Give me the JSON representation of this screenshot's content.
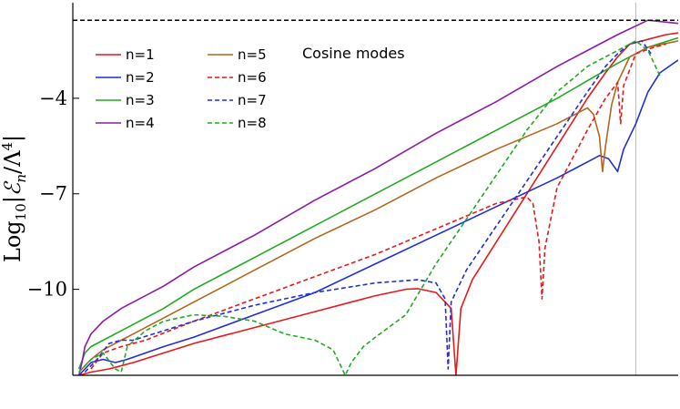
{
  "chart_data": {
    "type": "line",
    "title": "",
    "ylabel": "Log₁₀|ℰₙ/Λ⁴|",
    "ylabel_parts": {
      "prefix": "Log",
      "sub": "10",
      "body": "|ℰ",
      "body_sub": "n",
      "tail": "/Λ",
      "sup": "4",
      "close": "|"
    },
    "xlabel": "",
    "xlim": [
      0,
      1
    ],
    "ylim": [
      -12.7,
      -1.0
    ],
    "y_ticks": [
      -4,
      -7,
      -10
    ],
    "y_tick_labels": [
      "−4",
      "−7",
      "−10"
    ],
    "x_ticks_shown": false,
    "grid": false,
    "legend_placement": "top-left",
    "annotation": "Cosine modes",
    "reference_hline": {
      "y": -1.55,
      "style": "dashed",
      "color": "#000000"
    },
    "reference_vline": {
      "x": 0.93,
      "color": "#bbbbbb"
    },
    "series": [
      {
        "name": "n=1",
        "color": "#e41a1c",
        "dash": "solid",
        "points": [
          [
            0.01,
            -12.7
          ],
          [
            0.03,
            -12.6
          ],
          [
            0.06,
            -12.5
          ],
          [
            0.1,
            -12.3
          ],
          [
            0.2,
            -11.7
          ],
          [
            0.3,
            -11.2
          ],
          [
            0.4,
            -10.7
          ],
          [
            0.5,
            -10.2
          ],
          [
            0.55,
            -10.0
          ],
          [
            0.57,
            -9.98
          ],
          [
            0.6,
            -10.1
          ],
          [
            0.625,
            -10.6
          ],
          [
            0.633,
            -12.7
          ],
          [
            0.641,
            -10.6
          ],
          [
            0.66,
            -9.7
          ],
          [
            0.7,
            -8.5
          ],
          [
            0.75,
            -7.0
          ],
          [
            0.8,
            -5.5
          ],
          [
            0.85,
            -4.0
          ],
          [
            0.88,
            -3.2
          ],
          [
            0.9,
            -2.7
          ],
          [
            0.92,
            -2.3
          ],
          [
            0.95,
            -2.15
          ],
          [
            0.98,
            -2.0
          ],
          [
            1.0,
            -1.95
          ]
        ]
      },
      {
        "name": "n=2",
        "color": "#1f2fd6",
        "dash": "solid",
        "points": [
          [
            0.01,
            -12.7
          ],
          [
            0.03,
            -12.3
          ],
          [
            0.05,
            -12.2
          ],
          [
            0.07,
            -12.3
          ],
          [
            0.09,
            -12.2
          ],
          [
            0.15,
            -11.8
          ],
          [
            0.2,
            -11.5
          ],
          [
            0.3,
            -10.8
          ],
          [
            0.4,
            -10.1
          ],
          [
            0.5,
            -9.2
          ],
          [
            0.6,
            -8.3
          ],
          [
            0.7,
            -7.4
          ],
          [
            0.8,
            -6.5
          ],
          [
            0.85,
            -6.0
          ],
          [
            0.87,
            -5.8
          ],
          [
            0.885,
            -5.9
          ],
          [
            0.9,
            -6.3
          ],
          [
            0.91,
            -5.6
          ],
          [
            0.93,
            -4.8
          ],
          [
            0.95,
            -3.8
          ],
          [
            0.97,
            -3.2
          ],
          [
            1.0,
            -2.8
          ]
        ]
      },
      {
        "name": "n=3",
        "color": "#22aa22",
        "dash": "solid",
        "points": [
          [
            0.01,
            -12.5
          ],
          [
            0.02,
            -12.0
          ],
          [
            0.03,
            -11.8
          ],
          [
            0.05,
            -11.6
          ],
          [
            0.08,
            -11.3
          ],
          [
            0.1,
            -11.1
          ],
          [
            0.15,
            -10.6
          ],
          [
            0.2,
            -10.0
          ],
          [
            0.3,
            -9.0
          ],
          [
            0.4,
            -8.0
          ],
          [
            0.5,
            -7.0
          ],
          [
            0.6,
            -6.0
          ],
          [
            0.7,
            -5.0
          ],
          [
            0.8,
            -4.0
          ],
          [
            0.9,
            -2.9
          ],
          [
            0.95,
            -2.4
          ],
          [
            1.0,
            -2.1
          ]
        ]
      },
      {
        "name": "n=4",
        "color": "#8e1aa8",
        "dash": "solid",
        "points": [
          [
            0.01,
            -12.7
          ],
          [
            0.015,
            -12.3
          ],
          [
            0.02,
            -11.8
          ],
          [
            0.03,
            -11.4
          ],
          [
            0.05,
            -11.0
          ],
          [
            0.08,
            -10.6
          ],
          [
            0.1,
            -10.4
          ],
          [
            0.15,
            -9.9
          ],
          [
            0.2,
            -9.3
          ],
          [
            0.3,
            -8.3
          ],
          [
            0.4,
            -7.2
          ],
          [
            0.5,
            -6.2
          ],
          [
            0.6,
            -5.1
          ],
          [
            0.7,
            -4.1
          ],
          [
            0.8,
            -3.0
          ],
          [
            0.9,
            -2.0
          ],
          [
            0.95,
            -1.55
          ],
          [
            1.0,
            -1.65
          ]
        ]
      },
      {
        "name": "n=5",
        "color": "#b5651d",
        "dash": "solid",
        "points": [
          [
            0.01,
            -12.6
          ],
          [
            0.03,
            -12.2
          ],
          [
            0.05,
            -11.9
          ],
          [
            0.08,
            -11.6
          ],
          [
            0.1,
            -11.4
          ],
          [
            0.15,
            -10.9
          ],
          [
            0.2,
            -10.4
          ],
          [
            0.3,
            -9.4
          ],
          [
            0.4,
            -8.4
          ],
          [
            0.5,
            -7.5
          ],
          [
            0.6,
            -6.5
          ],
          [
            0.7,
            -5.6
          ],
          [
            0.8,
            -4.8
          ],
          [
            0.85,
            -4.3
          ],
          [
            0.86,
            -4.5
          ],
          [
            0.87,
            -5.2
          ],
          [
            0.875,
            -6.3
          ],
          [
            0.88,
            -5.5
          ],
          [
            0.89,
            -4.2
          ],
          [
            0.9,
            -3.5
          ],
          [
            0.92,
            -2.7
          ],
          [
            0.95,
            -2.4
          ],
          [
            1.0,
            -2.2
          ]
        ]
      },
      {
        "name": "n=6",
        "color": "#e41a1c",
        "dash": "dashed",
        "points": [
          [
            0.03,
            -12.5
          ],
          [
            0.05,
            -12.0
          ],
          [
            0.08,
            -11.8
          ],
          [
            0.12,
            -11.6
          ],
          [
            0.2,
            -11.0
          ],
          [
            0.3,
            -10.3
          ],
          [
            0.4,
            -9.6
          ],
          [
            0.5,
            -8.9
          ],
          [
            0.6,
            -8.1
          ],
          [
            0.7,
            -7.3
          ],
          [
            0.75,
            -7.1
          ],
          [
            0.76,
            -7.3
          ],
          [
            0.77,
            -8.5
          ],
          [
            0.775,
            -10.3
          ],
          [
            0.78,
            -8.7
          ],
          [
            0.8,
            -6.8
          ],
          [
            0.85,
            -5.0
          ],
          [
            0.88,
            -4.0
          ],
          [
            0.9,
            -3.5
          ],
          [
            0.905,
            -4.8
          ],
          [
            0.91,
            -3.6
          ],
          [
            0.93,
            -2.6
          ],
          [
            0.96,
            -2.4
          ],
          [
            0.98,
            -2.3
          ]
        ]
      },
      {
        "name": "n=7",
        "color": "#1f2fd6",
        "dash": "dashed",
        "points": [
          [
            0.02,
            -12.6
          ],
          [
            0.04,
            -12.2
          ],
          [
            0.06,
            -11.7
          ],
          [
            0.08,
            -11.6
          ],
          [
            0.1,
            -11.6
          ],
          [
            0.15,
            -11.3
          ],
          [
            0.2,
            -11.0
          ],
          [
            0.3,
            -10.5
          ],
          [
            0.4,
            -10.1
          ],
          [
            0.5,
            -9.8
          ],
          [
            0.57,
            -9.7
          ],
          [
            0.6,
            -9.8
          ],
          [
            0.615,
            -10.3
          ],
          [
            0.62,
            -12.5
          ],
          [
            0.625,
            -10.4
          ],
          [
            0.65,
            -9.4
          ],
          [
            0.7,
            -8.0
          ],
          [
            0.75,
            -6.6
          ],
          [
            0.8,
            -5.2
          ],
          [
            0.85,
            -3.8
          ],
          [
            0.88,
            -3.0
          ],
          [
            0.9,
            -2.6
          ],
          [
            0.92,
            -2.3
          ],
          [
            0.94,
            -2.2
          ],
          [
            0.955,
            -2.6
          ]
        ]
      },
      {
        "name": "n=8",
        "color": "#22aa22",
        "dash": "dashed",
        "points": [
          [
            0.01,
            -12.6
          ],
          [
            0.03,
            -12.2
          ],
          [
            0.05,
            -12.0
          ],
          [
            0.07,
            -12.5
          ],
          [
            0.08,
            -12.6
          ],
          [
            0.09,
            -11.8
          ],
          [
            0.12,
            -11.3
          ],
          [
            0.15,
            -11.0
          ],
          [
            0.2,
            -10.8
          ],
          [
            0.25,
            -10.85
          ],
          [
            0.3,
            -11.0
          ],
          [
            0.35,
            -11.4
          ],
          [
            0.4,
            -11.6
          ],
          [
            0.43,
            -11.9
          ],
          [
            0.44,
            -12.3
          ],
          [
            0.45,
            -12.7
          ],
          [
            0.46,
            -12.3
          ],
          [
            0.48,
            -11.8
          ],
          [
            0.5,
            -11.5
          ],
          [
            0.55,
            -10.8
          ],
          [
            0.6,
            -9.2
          ],
          [
            0.65,
            -7.8
          ],
          [
            0.7,
            -6.4
          ],
          [
            0.75,
            -5.0
          ],
          [
            0.8,
            -3.8
          ],
          [
            0.85,
            -3.0
          ],
          [
            0.9,
            -2.5
          ],
          [
            0.93,
            -2.2
          ],
          [
            0.95,
            -2.5
          ],
          [
            0.97,
            -3.3
          ]
        ]
      }
    ]
  }
}
